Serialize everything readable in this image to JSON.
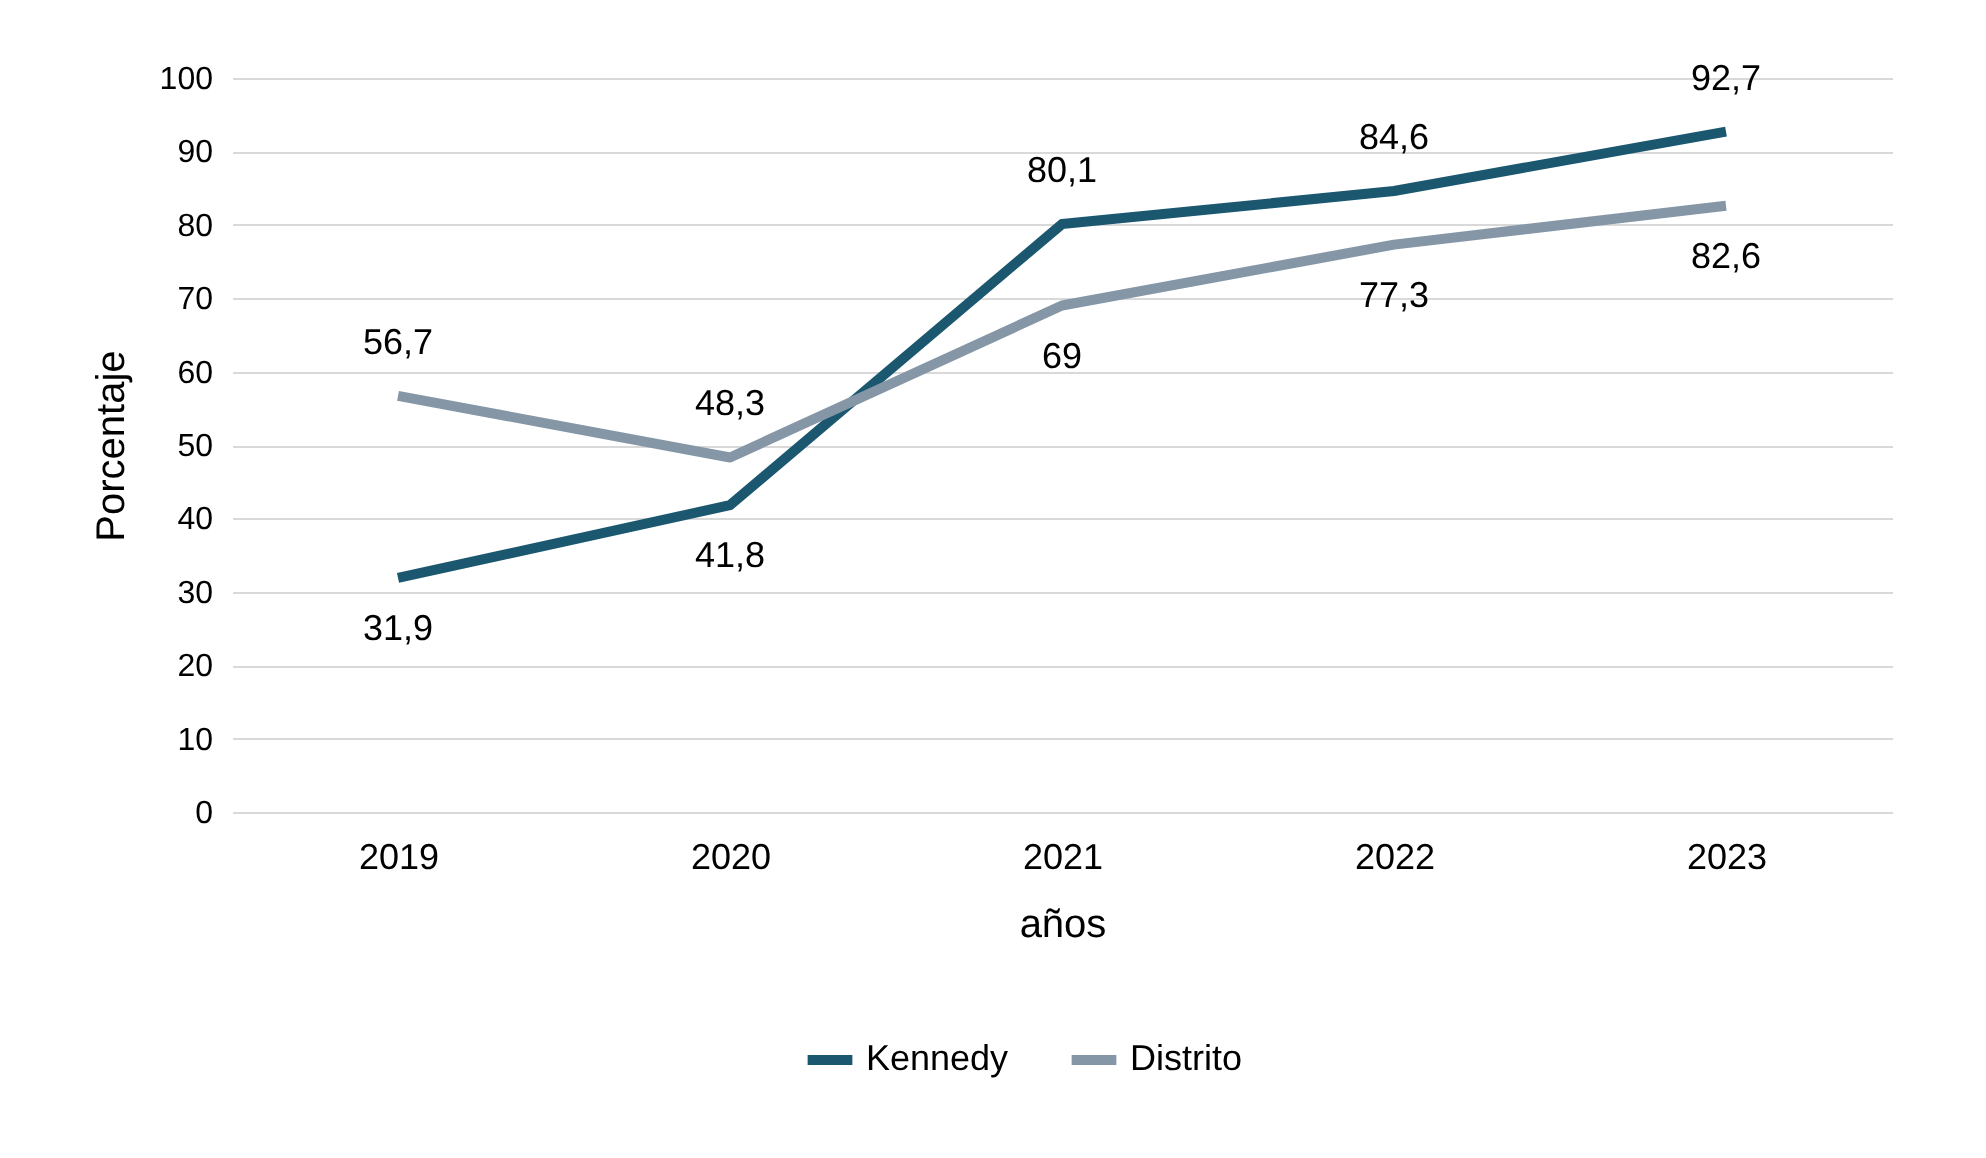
{
  "chart_data": {
    "type": "line",
    "xlabel": "años",
    "ylabel": "Porcentaje",
    "categories": [
      "2019",
      "2020",
      "2021",
      "2022",
      "2023"
    ],
    "series": [
      {
        "name": "Kennedy",
        "color": "#1b5870",
        "values": [
          31.9,
          41.8,
          80.1,
          84.6,
          92.7
        ],
        "value_labels": [
          "31,9",
          "41,8",
          "80,1",
          "84,6",
          "92,7"
        ]
      },
      {
        "name": "Distrito",
        "color": "#8597a7",
        "values": [
          56.7,
          48.3,
          69,
          77.3,
          82.6
        ],
        "value_labels": [
          "56,7",
          "48,3",
          "69",
          "77,3",
          "82,6"
        ]
      }
    ],
    "ylim": [
      0,
      100
    ],
    "yticks": [
      0,
      10,
      20,
      30,
      40,
      50,
      60,
      70,
      80,
      90,
      100
    ],
    "grid": "y",
    "legend": "bottom",
    "marker": "none",
    "line_style": "solid"
  }
}
